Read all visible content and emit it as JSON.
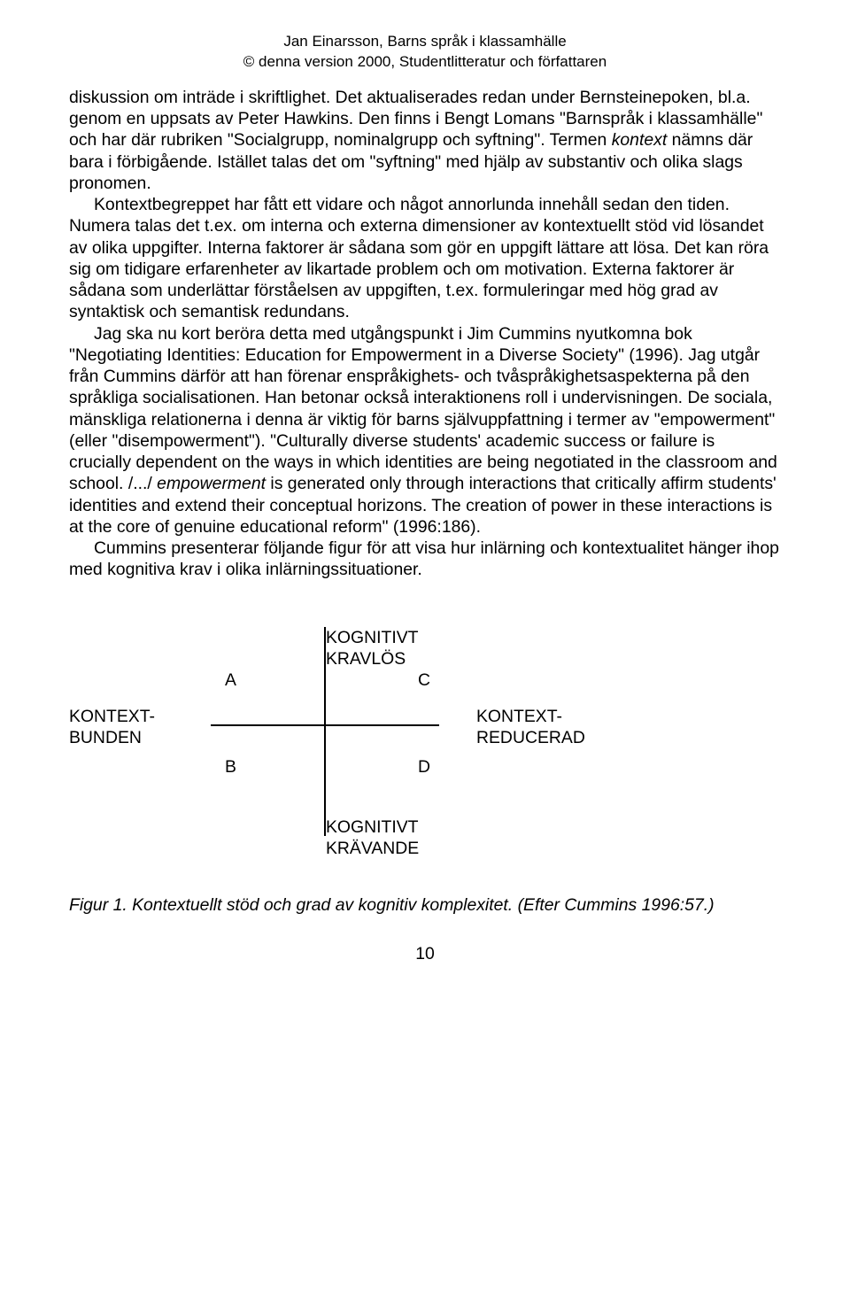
{
  "header": {
    "line1": "Jan Einarsson, Barns språk i klassamhälle",
    "line2": "© denna version 2000, Studentlitteratur och författaren"
  },
  "paragraphs": {
    "p1a": "diskussion om inträde i skriftlighet. Det aktualiserades redan under Bernsteinepoken, bl.a. genom en uppsats av Peter Hawkins. Den finns i Bengt Lomans \"Barnspråk i klassamhälle\" och har där rubriken \"Socialgrupp, nominalgrupp och syftning\". Termen ",
    "p1_italic": "kontext",
    "p1b": " nämns där bara i förbigående. Istället talas det om \"syftning\" med hjälp av substantiv och olika slags pronomen.",
    "p2": "Kontextbegreppet har fått ett vidare och något annorlunda innehåll sedan den tiden. Numera talas det t.ex. om interna och externa dimensioner av kontextuellt stöd vid lösandet av olika uppgifter. Interna faktorer är sådana som gör en uppgift lättare att lösa. Det kan röra sig om tidigare erfarenheter av likartade problem och om motivation. Externa faktorer är sådana som underlättar förståelsen av uppgiften, t.ex. formuleringar med hög grad av syntaktisk och semantisk redundans.",
    "p3a": "Jag ska nu kort beröra detta med utgångspunkt i Jim Cummins nyutkomna bok \"Negotiating Identities: Education for Empowerment in a Diverse Society\" (1996). Jag utgår från Cummins därför att han förenar enspråkighets- och tvåspråkighetsaspekterna på den språkliga socialisationen. Han betonar också interaktionens roll i undervisningen. De sociala, mänskliga relationerna i denna är viktig för barns självuppfattning i termer av \"empowerment\" (eller \"disempowerment\"). \"Culturally diverse students' academic success or failure is crucially dependent on the ways in which identities are being negotiated in the classroom and school. /.../ ",
    "p3_italic": "empowerment",
    "p3b": " is generated only through interactions that critically affirm students' identities and extend their conceptual horizons. The creation of power in these interactions is at the core of genuine educational reform\" (1996:186).",
    "p4": "Cummins presenterar följande figur för att visa hur inlärning och kontextualitet hänger ihop med kognitiva krav i olika inlärningssituationer."
  },
  "diagram": {
    "top1": "KOGNITIVT",
    "top2": "KRAVLÖS",
    "left1": "KONTEXT-",
    "left2": "BUNDEN",
    "right1": "KONTEXT-",
    "right2": "REDUCERAD",
    "bottom1": "KOGNITIVT",
    "bottom2": "KRÄVANDE",
    "a": "A",
    "b": "B",
    "c": "C",
    "d": "D"
  },
  "caption": "Figur 1. Kontextuellt stöd och grad av kognitiv komplexitet. (Efter Cummins 1996:57.)",
  "pagenum": "10"
}
